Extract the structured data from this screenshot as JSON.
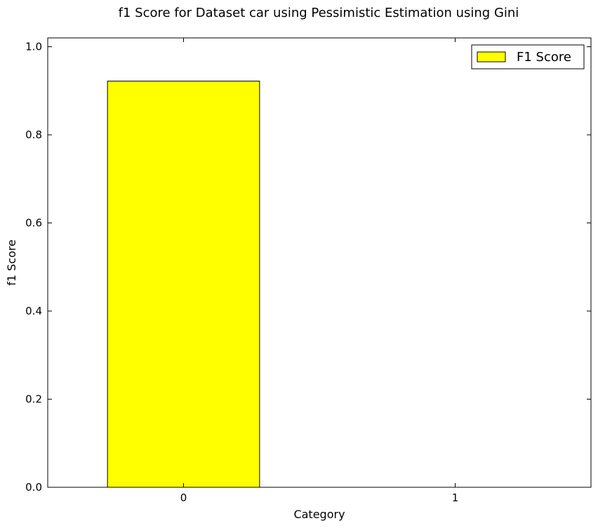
{
  "chart_data": {
    "type": "bar",
    "title": "f1 Score for Dataset car using Pessimistic Estimation using Gini",
    "xlabel": "Category",
    "ylabel": "f1 Score",
    "categories": [
      "0",
      "1"
    ],
    "series": [
      {
        "name": "F1 Score",
        "values": [
          0.922,
          0.0
        ]
      }
    ],
    "ylim": [
      0,
      1.02
    ],
    "yticks": [
      0.0,
      0.2,
      0.4,
      0.6,
      0.8,
      1.0
    ],
    "ytick_labels": [
      "0.0",
      "0.2",
      "0.4",
      "0.6",
      "0.8",
      "1.0"
    ],
    "legend_position": "top-right",
    "grid": false,
    "bar_color": "#ffff00",
    "edge_color": "#000000"
  }
}
